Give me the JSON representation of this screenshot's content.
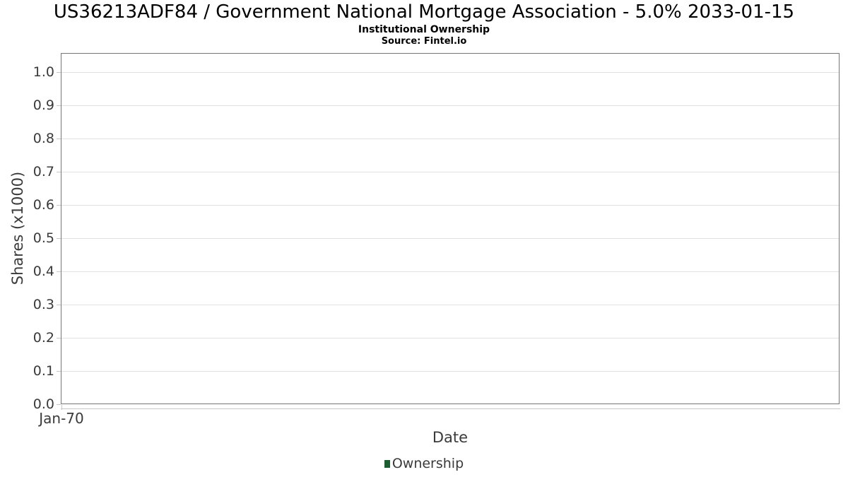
{
  "chart_data": {
    "type": "line",
    "title": "US36213ADF84 / Government National Mortgage Association - 5.0% 2033-01-15",
    "subtitle": "Institutional Ownership",
    "source": "Source: Fintel.io",
    "xlabel": "Date",
    "ylabel": "Shares (x1000)",
    "x_ticks": [
      "Jan-70"
    ],
    "y_ticks": [
      "0.0",
      "0.1",
      "0.2",
      "0.3",
      "0.4",
      "0.5",
      "0.6",
      "0.7",
      "0.8",
      "0.9",
      "1.0"
    ],
    "ylim": [
      0.0,
      1.06
    ],
    "grid": true,
    "legend": {
      "position": "bottom",
      "entries": [
        {
          "label": "Ownership",
          "color": "#1e5c31"
        }
      ]
    },
    "series": [
      {
        "name": "Ownership",
        "x": [],
        "y": []
      }
    ]
  },
  "colors": {
    "frame_border": "#777777",
    "gridline": "#e2e2e2",
    "tick": "#c9c9c9",
    "axis_text": "#3a3a3a",
    "title_text": "#000000",
    "legend_marker": "#1e5c31"
  }
}
